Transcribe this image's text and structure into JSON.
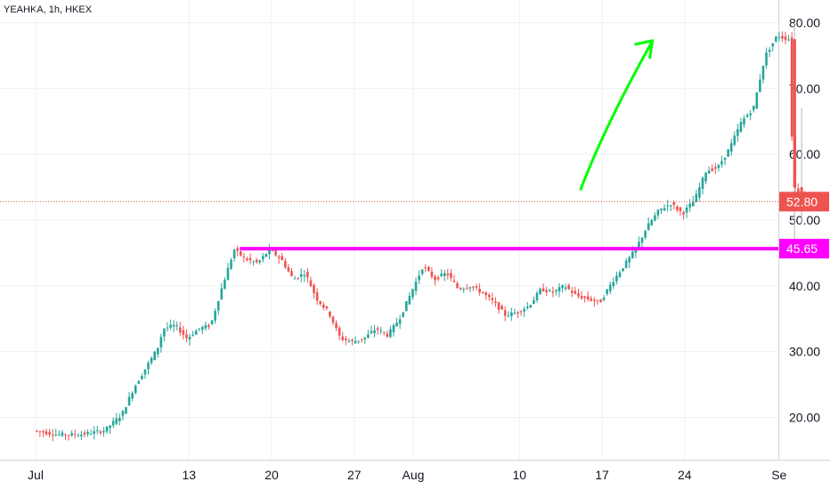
{
  "header": {
    "symbol_label": "YEAHKA, 1h, HKEX"
  },
  "colors": {
    "up": "#26a69a",
    "down": "#ef5350",
    "support": "#ff00ff",
    "arrow": "#00ff00",
    "price_tag": "#ef5350",
    "grid": "#eef0f3",
    "axis_text": "#131722"
  },
  "chart_data": {
    "type": "candlestick",
    "title": "YEAHKA, 1h, HKEX",
    "ylim": [
      13,
      82
    ],
    "y_ticks": [
      "80.00",
      "70.00",
      "60.00",
      "50.00",
      "40.00",
      "30.00",
      "20.00"
    ],
    "x_ticks": [
      "Jul",
      "13",
      "20",
      "27",
      "Aug",
      "10",
      "17",
      "24",
      "Se"
    ],
    "last_price": {
      "value": 52.8,
      "label": "52.80"
    },
    "support": {
      "value": 45.65,
      "label": "45.65",
      "from_day": 17.3,
      "to_day": 44.8
    },
    "arrow": {
      "from": [
        46.2,
        54.7
      ],
      "to": [
        52.2,
        77.0
      ]
    },
    "price_path": [
      [
        0.0,
        18.0
      ],
      [
        2.0,
        17.4
      ],
      [
        4.0,
        17.4
      ],
      [
        6.0,
        18.0
      ],
      [
        7.5,
        20.5
      ],
      [
        8.5,
        24.5
      ],
      [
        9.5,
        27.5
      ],
      [
        10.5,
        30.5
      ],
      [
        11.0,
        33.5
      ],
      [
        12.0,
        34.0
      ],
      [
        13.0,
        32.0
      ],
      [
        14.0,
        33.5
      ],
      [
        15.0,
        34.0
      ],
      [
        16.0,
        40.0
      ],
      [
        17.0,
        45.5
      ],
      [
        18.0,
        44.0
      ],
      [
        19.0,
        43.5
      ],
      [
        20.0,
        45.5
      ],
      [
        21.0,
        44.0
      ],
      [
        22.0,
        41.0
      ],
      [
        23.0,
        42.0
      ],
      [
        24.0,
        38.0
      ],
      [
        25.0,
        36.0
      ],
      [
        26.0,
        32.0
      ],
      [
        27.0,
        31.5
      ],
      [
        28.0,
        32.0
      ],
      [
        29.0,
        33.5
      ],
      [
        30.0,
        32.5
      ],
      [
        31.0,
        35.0
      ],
      [
        32.0,
        39.0
      ],
      [
        33.0,
        43.0
      ],
      [
        34.0,
        41.0
      ],
      [
        35.0,
        42.0
      ],
      [
        36.0,
        39.5
      ],
      [
        37.0,
        40.0
      ],
      [
        38.0,
        39.0
      ],
      [
        39.0,
        37.5
      ],
      [
        40.0,
        35.5
      ],
      [
        41.0,
        36.0
      ],
      [
        42.0,
        37.0
      ],
      [
        43.0,
        39.5
      ],
      [
        44.0,
        39.0
      ],
      [
        45.0,
        40.0
      ],
      [
        46.0,
        38.5
      ],
      [
        47.0,
        38.0
      ],
      [
        48.0,
        37.5
      ],
      [
        49.0,
        40.5
      ],
      [
        50.0,
        43.0
      ],
      [
        51.0,
        45.5
      ],
      [
        52.0,
        49.0
      ],
      [
        53.0,
        51.5
      ],
      [
        54.0,
        52.5
      ],
      [
        55.0,
        51.0
      ],
      [
        56.0,
        53.0
      ],
      [
        57.0,
        57.5
      ],
      [
        58.0,
        58.0
      ],
      [
        59.0,
        61.0
      ],
      [
        60.0,
        65.0
      ],
      [
        61.0,
        67.0
      ],
      [
        62.0,
        75.0
      ],
      [
        63.0,
        78.0
      ],
      [
        64.0,
        77.5
      ],
      [
        64.4,
        55.0
      ],
      [
        65.0,
        54.0
      ],
      [
        65.5,
        52.8
      ]
    ]
  }
}
